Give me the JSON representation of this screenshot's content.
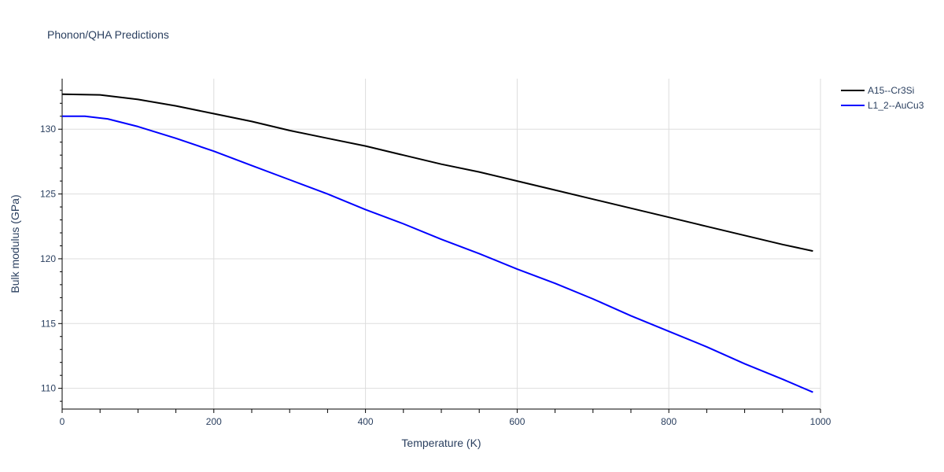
{
  "chart_data": {
    "type": "line",
    "title": "Phonon/QHA Predictions",
    "xlabel": "Temperature (K)",
    "ylabel": "Bulk modulus (GPa)",
    "xlim": [
      0,
      1000
    ],
    "ylim": [
      108.4,
      133.9
    ],
    "x_ticks": [
      0,
      200,
      400,
      600,
      800,
      1000
    ],
    "y_ticks": [
      110,
      115,
      120,
      125,
      130
    ],
    "grid": true,
    "legend_position": "top-right",
    "series": [
      {
        "name": "A15--Cr3Si",
        "color": "#000000",
        "x": [
          0,
          50,
          100,
          150,
          200,
          250,
          300,
          350,
          400,
          450,
          500,
          550,
          600,
          650,
          700,
          750,
          800,
          850,
          900,
          950,
          990
        ],
        "y": [
          132.7,
          132.65,
          132.3,
          131.8,
          131.2,
          130.6,
          129.9,
          129.3,
          128.7,
          128.0,
          127.3,
          126.7,
          126.0,
          125.3,
          124.6,
          123.9,
          123.2,
          122.5,
          121.8,
          121.1,
          120.6
        ]
      },
      {
        "name": "L1_2--AuCu3",
        "color": "#0000ff",
        "x": [
          0,
          30,
          60,
          100,
          150,
          200,
          250,
          300,
          350,
          400,
          450,
          500,
          550,
          600,
          650,
          700,
          750,
          800,
          850,
          900,
          950,
          990
        ],
        "y": [
          131.0,
          131.0,
          130.8,
          130.2,
          129.3,
          128.3,
          127.2,
          126.1,
          125.0,
          123.8,
          122.7,
          121.5,
          120.4,
          119.2,
          118.1,
          116.9,
          115.6,
          114.4,
          113.2,
          111.9,
          110.7,
          109.7
        ]
      }
    ]
  }
}
